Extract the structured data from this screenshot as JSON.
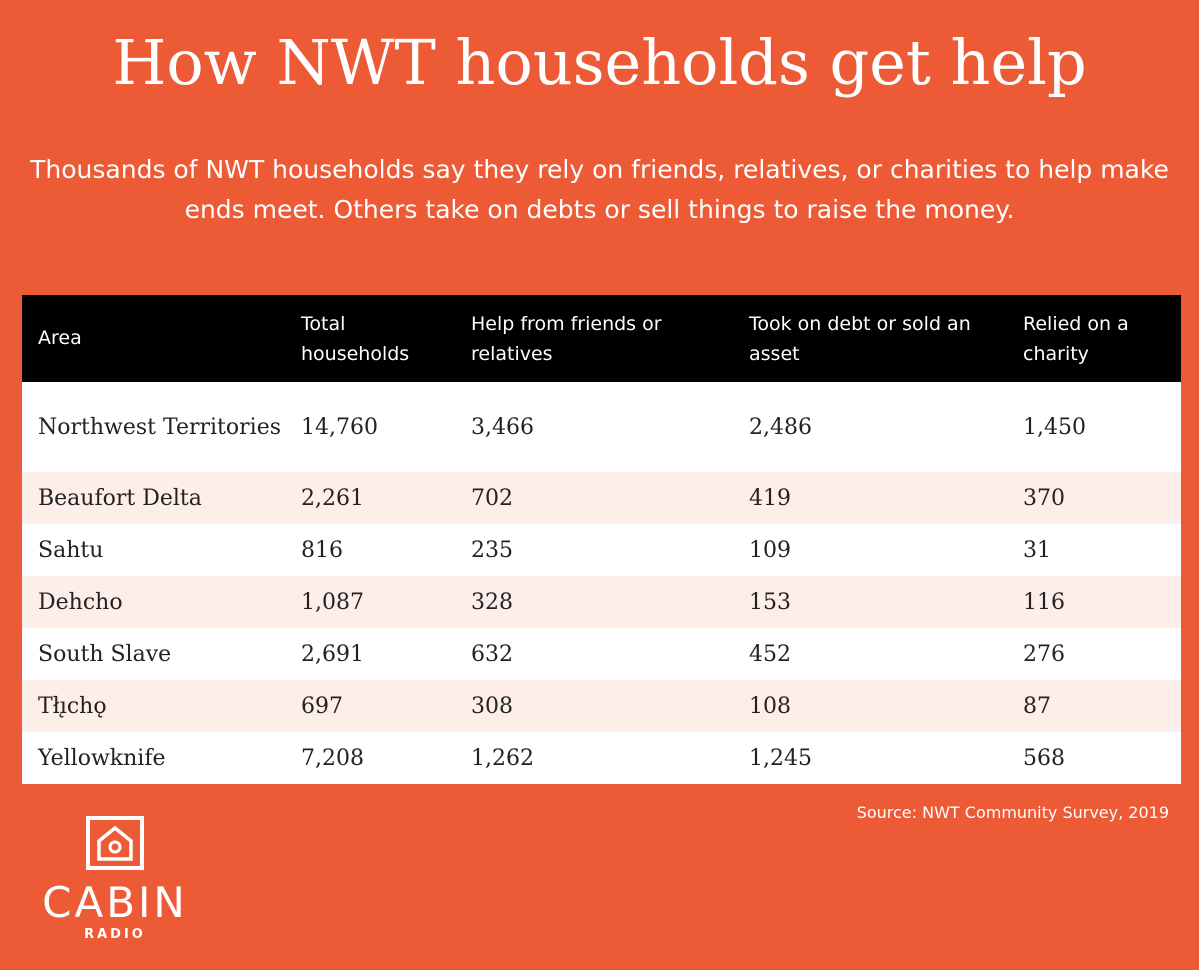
{
  "header": {
    "title": "How NWT households get help",
    "subtitle": "Thousands of NWT households say they rely on friends, relatives, or charities to help make ends meet. Others take on debts or sell things to raise the money."
  },
  "table": {
    "columns": [
      "Area",
      "Total households",
      "Help from friends or relatives",
      "Took on debt or sold an asset",
      "Relied on a charity"
    ],
    "rows": [
      [
        "Northwest Territories",
        "14,760",
        "3,466",
        "2,486",
        "1,450"
      ],
      [
        "Beaufort Delta",
        "2,261",
        "702",
        "419",
        "370"
      ],
      [
        "Sahtu",
        "816",
        "235",
        "109",
        "31"
      ],
      [
        "Dehcho",
        "1,087",
        "328",
        "153",
        "116"
      ],
      [
        "South Slave",
        "2,691",
        "632",
        "452",
        "276"
      ],
      [
        "Tłı̨chǫ",
        "697",
        "308",
        "108",
        "87"
      ],
      [
        "Yellowknife",
        "7,208",
        "1,262",
        "1,245",
        "568"
      ]
    ]
  },
  "source": "Source: NWT Community Survey, 2019",
  "logo": {
    "name": "CABIN",
    "sub": "RADIO"
  }
}
